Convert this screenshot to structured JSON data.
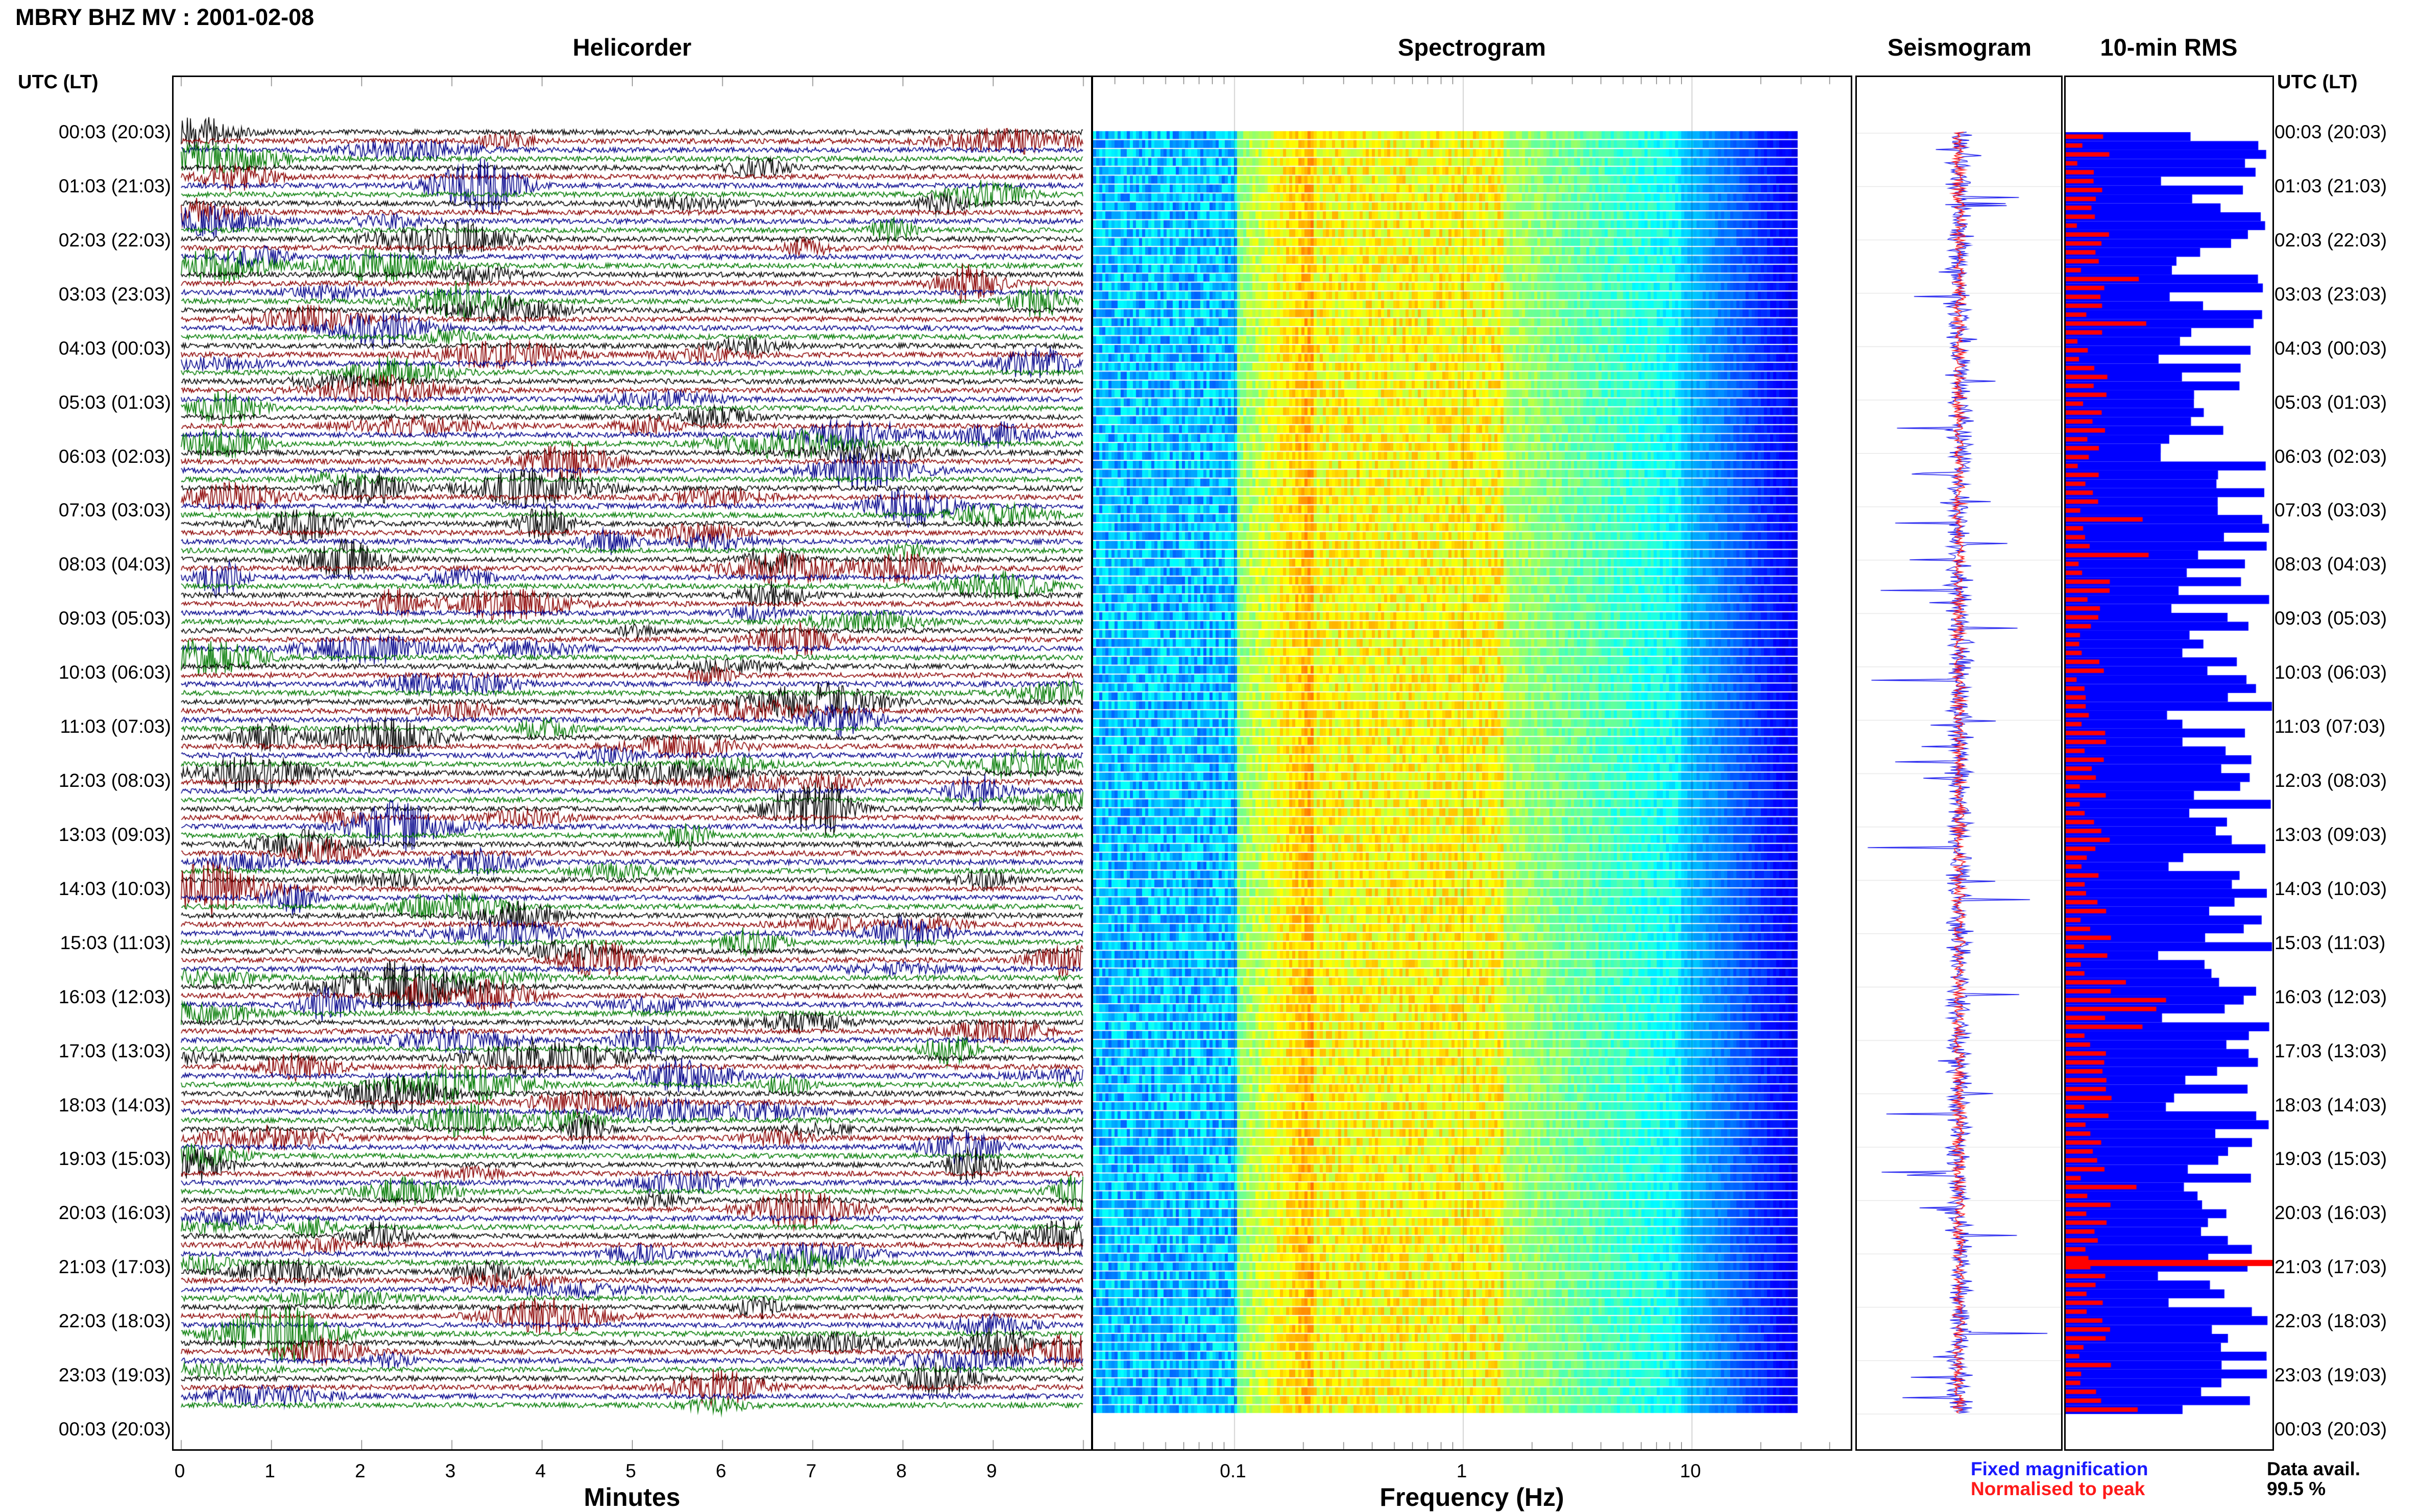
{
  "title": "MBRY BHZ MV : 2001-02-08",
  "panels": {
    "helicorder": "Helicorder",
    "spectrogram": "Spectrogram",
    "seismogram": "Seismogram",
    "rms": "10-min RMS"
  },
  "utc_header": "UTC (LT)",
  "time_labels": [
    "00:03 (20:03)",
    "01:03 (21:03)",
    "02:03 (22:03)",
    "03:03 (23:03)",
    "04:03 (00:03)",
    "05:03 (01:03)",
    "06:03 (02:03)",
    "07:03 (03:03)",
    "08:03 (04:03)",
    "09:03 (05:03)",
    "10:03 (06:03)",
    "11:03 (07:03)",
    "12:03 (08:03)",
    "13:03 (09:03)",
    "14:03 (10:03)",
    "15:03 (11:03)",
    "16:03 (12:03)",
    "17:03 (13:03)",
    "18:03 (14:03)",
    "19:03 (15:03)",
    "20:03 (16:03)",
    "21:03 (17:03)",
    "22:03 (18:03)",
    "23:03 (19:03)",
    "00:03 (20:03)"
  ],
  "x_ticks_minutes": [
    "0",
    "1",
    "2",
    "3",
    "4",
    "5",
    "6",
    "7",
    "8",
    "9"
  ],
  "x_label_minutes": "Minutes",
  "x_ticks_freq": [
    "0.1",
    "1",
    "10"
  ],
  "x_label_freq": "Frequency (Hz)",
  "legend": {
    "fixed": "Fixed magnification",
    "normalised": "Normalised to peak"
  },
  "data_avail": {
    "label": "Data avail.",
    "value": "99.5 %"
  },
  "colors": {
    "black": "#000000",
    "red": "#8b0000",
    "blue": "#00008b",
    "green": "#007a00",
    "fixed": "#1a1aff",
    "normalised": "#ff1a1a"
  },
  "chart_data": [
    {
      "type": "line",
      "title": "Helicorder",
      "xlabel": "Minutes",
      "xlim": [
        0,
        10
      ],
      "series": [],
      "rows_per_hour": 6,
      "row_colors": [
        "black",
        "red",
        "blue",
        "green"
      ]
    },
    {
      "type": "heatmap",
      "title": "Spectrogram",
      "xlabel": "Frequency (Hz)",
      "xscale": "log",
      "xlim": [
        0.02,
        50
      ]
    },
    {
      "type": "line",
      "title": "Seismogram"
    },
    {
      "type": "bar",
      "title": "10-min RMS"
    }
  ]
}
